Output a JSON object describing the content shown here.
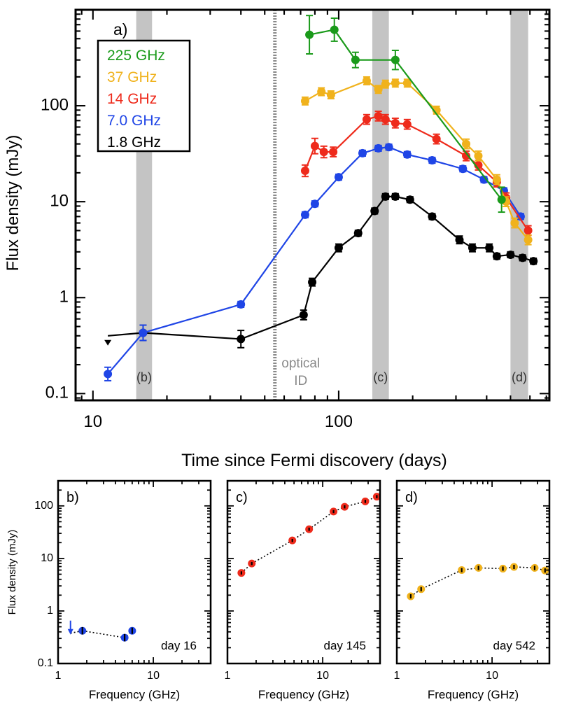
{
  "colors": {
    "c225": "#1a9a1a",
    "c37": "#f0b21c",
    "c14": "#ee2a1b",
    "c7": "#1f45e6",
    "c18": "#000000",
    "band": "#c4c4c4",
    "optical": "#8a8a8a"
  },
  "chart_data": [
    {
      "id": "a",
      "type": "line",
      "panel_label": "a)",
      "xlabel": "Time since Fermi discovery (days)",
      "ylabel": "Flux density (mJy)",
      "xscale": "log",
      "yscale": "log",
      "xlim": [
        8.5,
        720
      ],
      "ylim": [
        0.085,
        1000
      ],
      "xticks": [
        {
          "v": 10,
          "label": "10"
        },
        {
          "v": 100,
          "label": "100"
        }
      ],
      "yticks": [
        {
          "v": 0.1,
          "label": "0.1"
        },
        {
          "v": 1,
          "label": "1"
        },
        {
          "v": 10,
          "label": "10"
        },
        {
          "v": 100,
          "label": "100"
        }
      ],
      "bands": [
        {
          "label": "(b)",
          "x0": 15,
          "x1": 17.4
        },
        {
          "label": "(c)",
          "x0": 137,
          "x1": 160
        },
        {
          "label": "(d)",
          "x0": 500,
          "x1": 590
        }
      ],
      "optical_marker": {
        "x": 55,
        "label_lines": [
          "optical",
          "ID"
        ]
      },
      "legend_position": "top-left",
      "series": [
        {
          "name": "225 GHz",
          "color_key": "c225",
          "x": [
            76,
            96,
            117,
            170,
            460
          ],
          "y": [
            550,
            620,
            300,
            300,
            10.5
          ],
          "err": [
            0.2,
            0.12,
            0.08,
            0.1,
            0.13
          ]
        },
        {
          "name": "37 GHz",
          "color_key": "c37",
          "x": [
            73,
            85,
            93,
            130,
            145,
            155,
            170,
            190,
            250,
            330,
            370,
            440,
            480,
            520,
            590
          ],
          "y": [
            112,
            140,
            130,
            182,
            148,
            168,
            172,
            172,
            90,
            40,
            30,
            17,
            10,
            6,
            4
          ],
          "err": [
            0.04,
            0.04,
            0.04,
            0.04,
            0.04,
            0.04,
            0.04,
            0.04,
            0.04,
            0.05,
            0.05,
            0.05,
            0.05,
            0.05,
            0.05
          ]
        },
        {
          "name": "14 GHz",
          "color_key": "c14",
          "x": [
            73,
            80,
            87,
            95,
            130,
            145,
            155,
            170,
            190,
            250,
            330,
            370,
            440,
            480,
            590
          ],
          "y": [
            21,
            38,
            33,
            33,
            72,
            78,
            72,
            66,
            64,
            45,
            30,
            24,
            16,
            11,
            5
          ],
          "err": [
            0.06,
            0.08,
            0.06,
            0.05,
            0.05,
            0.05,
            0.05,
            0.05,
            0.05,
            0.05,
            0.05,
            0.05,
            0.05,
            0.05,
            0.05
          ]
        },
        {
          "name": "7.0 GHz",
          "color_key": "c7",
          "x": [
            11.5,
            16,
            40,
            73,
            80,
            100,
            125,
            145,
            160,
            190,
            240,
            320,
            390,
            470,
            550
          ],
          "y": [
            0.16,
            0.43,
            0.85,
            7.3,
            9.5,
            18,
            32,
            36,
            37,
            31,
            27,
            22,
            17,
            13,
            7
          ],
          "err": [
            0.07,
            0.08,
            0.03,
            0.03,
            0.03,
            0.03,
            0.03,
            0.03,
            0.03,
            0.03,
            0.03,
            0.03,
            0.03,
            0.03,
            0.03
          ]
        },
        {
          "name": "1.8 GHz",
          "color_key": "c18",
          "x": [
            11.5,
            16,
            40,
            72,
            78,
            100,
            120,
            140,
            155,
            170,
            195,
            240,
            310,
            350,
            410,
            440,
            500,
            560,
            620
          ],
          "y": [
            0.4,
            0.43,
            0.37,
            0.66,
            1.45,
            3.3,
            4.7,
            8,
            11.3,
            11.3,
            10.5,
            7,
            4,
            3.3,
            3.3,
            2.7,
            2.8,
            2.6,
            2.4
          ],
          "err": [
            0,
            0.08,
            0.09,
            0.05,
            0.04,
            0.04,
            0.03,
            0.03,
            0.03,
            0.03,
            0.03,
            0.03,
            0.04,
            0.04,
            0.04,
            0.03,
            0.03,
            0.03,
            0.03
          ],
          "upper_limit_index": 0
        }
      ]
    },
    {
      "id": "b",
      "type": "scatter",
      "panel_label": "b)",
      "day_label": "day 16",
      "xlabel": "Frequency (GHz)",
      "ylabel": "Flux density (mJy)",
      "xscale": "log",
      "yscale": "log",
      "xlim": [
        1,
        40
      ],
      "ylim": [
        0.1,
        300
      ],
      "xticks": [
        {
          "v": 1,
          "label": "1"
        },
        {
          "v": 10,
          "label": "10"
        }
      ],
      "yticks": [
        {
          "v": 0.1,
          "label": "0.1"
        },
        {
          "v": 1,
          "label": "1"
        },
        {
          "v": 10,
          "label": "10"
        },
        {
          "v": 100,
          "label": "100"
        }
      ],
      "color_key": "c7",
      "x": [
        1.8,
        5,
        6
      ],
      "y": [
        0.42,
        0.31,
        0.42
      ],
      "err": [
        0.07,
        0.07,
        0.06
      ],
      "upper_limit": {
        "x": 1.35,
        "y": 0.58
      }
    },
    {
      "id": "c",
      "type": "scatter",
      "panel_label": "c)",
      "day_label": "day 145",
      "xlabel": "Frequency (GHz)",
      "xscale": "log",
      "yscale": "log",
      "xlim": [
        1,
        40
      ],
      "ylim": [
        0.1,
        300
      ],
      "xticks": [
        {
          "v": 1,
          "label": "1"
        },
        {
          "v": 10,
          "label": "10"
        }
      ],
      "yticks": [
        {
          "v": 0.1,
          "label": ""
        },
        {
          "v": 1,
          "label": ""
        },
        {
          "v": 10,
          "label": ""
        },
        {
          "v": 100,
          "label": ""
        }
      ],
      "color_key": "c14",
      "x": [
        1.4,
        1.8,
        4.8,
        7.2,
        13,
        17,
        28,
        37
      ],
      "y": [
        5.3,
        8,
        22,
        36,
        78,
        96,
        122,
        150
      ],
      "err": [
        0.03,
        0.03,
        0.03,
        0.03,
        0.03,
        0.03,
        0.03,
        0.03
      ]
    },
    {
      "id": "d",
      "type": "scatter",
      "panel_label": "d)",
      "day_label": "day 542",
      "xlabel": "Frequency (GHz)",
      "xscale": "log",
      "yscale": "log",
      "xlim": [
        1,
        40
      ],
      "ylim": [
        0.1,
        300
      ],
      "xticks": [
        {
          "v": 1,
          "label": "1"
        },
        {
          "v": 10,
          "label": "10"
        }
      ],
      "yticks": [
        {
          "v": 0.1,
          "label": ""
        },
        {
          "v": 1,
          "label": ""
        },
        {
          "v": 10,
          "label": ""
        },
        {
          "v": 100,
          "label": ""
        }
      ],
      "color_key": "c37",
      "x": [
        1.4,
        1.8,
        4.8,
        7.2,
        13,
        17,
        28,
        36
      ],
      "y": [
        1.9,
        2.6,
        6,
        6.6,
        6.4,
        6.9,
        6.6,
        5.9
      ],
      "err": [
        0.04,
        0.04,
        0.04,
        0.04,
        0.04,
        0.04,
        0.04,
        0.04
      ]
    }
  ]
}
